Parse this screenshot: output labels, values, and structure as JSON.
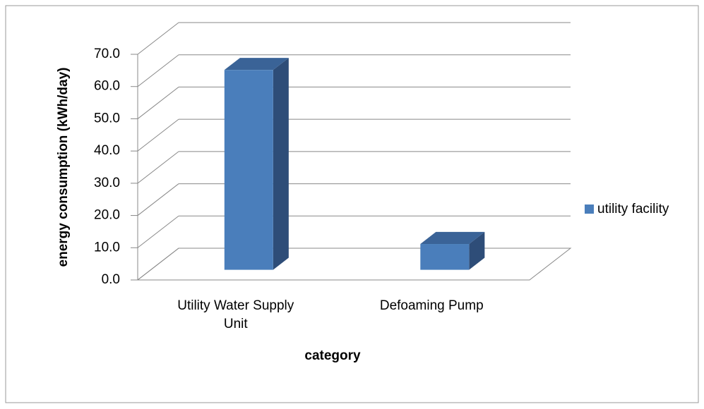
{
  "chart_data": {
    "type": "bar3d",
    "x_label": "category",
    "y_label": "energy consumption (kWh/day)",
    "categories": [
      "Utility Water Supply Unit",
      "Defoaming Pump"
    ],
    "series": [
      {
        "name": "utility facility",
        "color": "#4a7ebb",
        "values": [
          62,
          8
        ]
      }
    ],
    "ylim": [
      0,
      70
    ],
    "yticks": [
      {
        "value": 0,
        "label": "0.0"
      },
      {
        "value": 10,
        "label": "10.0"
      },
      {
        "value": 20,
        "label": "20.0"
      },
      {
        "value": 30,
        "label": "30.0"
      },
      {
        "value": 40,
        "label": "40.0"
      },
      {
        "value": 50,
        "label": "50.0"
      },
      {
        "value": 60,
        "label": "60.0"
      },
      {
        "value": 70,
        "label": "70.0"
      }
    ],
    "grid": true,
    "legend": "right"
  }
}
